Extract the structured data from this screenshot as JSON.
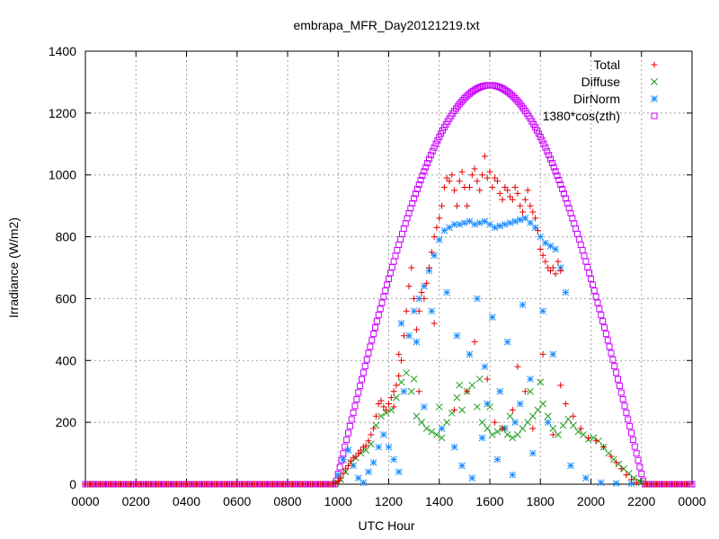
{
  "chart_data": {
    "type": "scatter",
    "title": "embrapa_MFR_Day20121219.txt",
    "xlabel": "UTC Hour",
    "ylabel": "Irradiance (W/m2)",
    "xlim": [
      0,
      24
    ],
    "ylim": [
      0,
      1400
    ],
    "xticks": [
      "0000",
      "0200",
      "0400",
      "0600",
      "0800",
      "1000",
      "1200",
      "1400",
      "1600",
      "1800",
      "2000",
      "2200",
      "0000"
    ],
    "yticks": [
      "0",
      "200",
      "400",
      "600",
      "800",
      "1000",
      "1200",
      "1400"
    ],
    "grid": true,
    "legend_position": "top-right",
    "colors": {
      "total": "#e60000",
      "diffuse": "#1a9c1a",
      "dirnorm": "#1a8cff",
      "cos": "#cc00ff"
    },
    "series": [
      {
        "name": "Total",
        "marker": "plus",
        "points": [
          [
            9.9,
            5
          ],
          [
            10.0,
            10
          ],
          [
            10.1,
            20
          ],
          [
            10.2,
            35
          ],
          [
            10.3,
            50
          ],
          [
            10.4,
            60
          ],
          [
            10.5,
            75
          ],
          [
            10.6,
            85
          ],
          [
            10.7,
            90
          ],
          [
            10.8,
            100
          ],
          [
            10.9,
            110
          ],
          [
            11.0,
            120
          ],
          [
            11.1,
            125
          ],
          [
            11.2,
            140
          ],
          [
            11.3,
            160
          ],
          [
            11.4,
            180
          ],
          [
            11.5,
            220
          ],
          [
            11.6,
            260
          ],
          [
            11.7,
            270
          ],
          [
            11.8,
            250
          ],
          [
            11.9,
            240
          ],
          [
            12.0,
            260
          ],
          [
            12.1,
            280
          ],
          [
            12.2,
            300
          ],
          [
            12.3,
            320
          ],
          [
            12.4,
            350
          ],
          [
            12.5,
            400
          ],
          [
            12.6,
            480
          ],
          [
            12.7,
            560
          ],
          [
            12.8,
            640
          ],
          [
            12.9,
            700
          ],
          [
            13.0,
            600
          ],
          [
            13.1,
            500
          ],
          [
            13.2,
            560
          ],
          [
            13.3,
            620
          ],
          [
            13.4,
            600
          ],
          [
            13.5,
            650
          ],
          [
            13.6,
            700
          ],
          [
            13.7,
            750
          ],
          [
            13.8,
            800
          ],
          [
            13.9,
            830
          ],
          [
            14.0,
            860
          ],
          [
            14.1,
            900
          ],
          [
            14.2,
            960
          ],
          [
            14.3,
            990
          ],
          [
            14.4,
            980
          ],
          [
            14.5,
            1000
          ],
          [
            14.6,
            950
          ],
          [
            14.7,
            900
          ],
          [
            14.8,
            980
          ],
          [
            14.9,
            1010
          ],
          [
            15.0,
            960
          ],
          [
            15.1,
            900
          ],
          [
            15.2,
            960
          ],
          [
            15.3,
            1000
          ],
          [
            15.4,
            1020
          ],
          [
            15.5,
            980
          ],
          [
            15.6,
            950
          ],
          [
            15.7,
            1000
          ],
          [
            15.8,
            1060
          ],
          [
            15.9,
            990
          ],
          [
            16.0,
            1010
          ],
          [
            16.1,
            960
          ],
          [
            16.2,
            990
          ],
          [
            16.3,
            980
          ],
          [
            16.4,
            940
          ],
          [
            16.5,
            920
          ],
          [
            16.6,
            960
          ],
          [
            16.7,
            950
          ],
          [
            16.8,
            930
          ],
          [
            16.9,
            920
          ],
          [
            17.0,
            960
          ],
          [
            17.1,
            940
          ],
          [
            17.2,
            900
          ],
          [
            17.3,
            880
          ],
          [
            17.4,
            920
          ],
          [
            17.5,
            950
          ],
          [
            17.6,
            900
          ],
          [
            17.7,
            880
          ],
          [
            17.8,
            860
          ],
          [
            17.9,
            820
          ],
          [
            18.0,
            760
          ],
          [
            18.1,
            740
          ],
          [
            18.2,
            720
          ],
          [
            18.3,
            700
          ],
          [
            18.4,
            690
          ],
          [
            18.5,
            700
          ],
          [
            18.6,
            680
          ],
          [
            18.7,
            720
          ],
          [
            18.8,
            690
          ],
          [
            12.2,
            250
          ],
          [
            12.4,
            420
          ],
          [
            13.2,
            300
          ],
          [
            13.8,
            520
          ],
          [
            14.6,
            240
          ],
          [
            15.1,
            300
          ],
          [
            15.4,
            460
          ],
          [
            15.9,
            340
          ],
          [
            16.2,
            200
          ],
          [
            16.5,
            180
          ],
          [
            16.9,
            240
          ],
          [
            17.1,
            380
          ],
          [
            17.4,
            300
          ],
          [
            17.7,
            180
          ],
          [
            18.1,
            420
          ],
          [
            18.5,
            160
          ],
          [
            18.8,
            320
          ],
          [
            19.0,
            260
          ],
          [
            19.3,
            220
          ],
          [
            19.6,
            180
          ],
          [
            19.9,
            150
          ],
          [
            20.2,
            140
          ],
          [
            20.5,
            120
          ],
          [
            20.8,
            90
          ],
          [
            21.0,
            70
          ],
          [
            21.2,
            50
          ],
          [
            21.4,
            30
          ],
          [
            21.6,
            15
          ],
          [
            21.8,
            5
          ]
        ]
      },
      {
        "name": "Diffuse",
        "marker": "cross",
        "points": [
          [
            9.9,
            4
          ],
          [
            10.1,
            15
          ],
          [
            10.3,
            40
          ],
          [
            10.5,
            70
          ],
          [
            10.7,
            85
          ],
          [
            10.9,
            100
          ],
          [
            11.1,
            110
          ],
          [
            11.3,
            130
          ],
          [
            11.5,
            190
          ],
          [
            11.7,
            220
          ],
          [
            11.9,
            230
          ],
          [
            12.1,
            240
          ],
          [
            12.3,
            280
          ],
          [
            12.5,
            330
          ],
          [
            12.7,
            360
          ],
          [
            12.9,
            300
          ],
          [
            13.1,
            220
          ],
          [
            13.3,
            200
          ],
          [
            13.5,
            180
          ],
          [
            13.7,
            170
          ],
          [
            13.9,
            160
          ],
          [
            14.1,
            150
          ],
          [
            14.3,
            200
          ],
          [
            14.5,
            230
          ],
          [
            14.7,
            280
          ],
          [
            14.9,
            240
          ],
          [
            15.1,
            300
          ],
          [
            15.3,
            320
          ],
          [
            15.5,
            250
          ],
          [
            15.7,
            200
          ],
          [
            15.9,
            180
          ],
          [
            16.1,
            160
          ],
          [
            16.3,
            170
          ],
          [
            16.5,
            180
          ],
          [
            16.7,
            160
          ],
          [
            16.9,
            150
          ],
          [
            17.1,
            160
          ],
          [
            17.3,
            180
          ],
          [
            17.5,
            200
          ],
          [
            17.7,
            220
          ],
          [
            17.9,
            240
          ],
          [
            18.1,
            260
          ],
          [
            18.3,
            220
          ],
          [
            18.5,
            180
          ],
          [
            18.7,
            160
          ],
          [
            18.9,
            190
          ],
          [
            19.1,
            210
          ],
          [
            19.3,
            190
          ],
          [
            19.5,
            170
          ],
          [
            19.7,
            160
          ],
          [
            19.9,
            145
          ],
          [
            20.1,
            150
          ],
          [
            20.3,
            140
          ],
          [
            20.5,
            120
          ],
          [
            20.7,
            100
          ],
          [
            20.9,
            80
          ],
          [
            21.1,
            65
          ],
          [
            21.3,
            50
          ],
          [
            21.5,
            35
          ],
          [
            21.7,
            20
          ],
          [
            21.9,
            10
          ],
          [
            22.0,
            5
          ],
          [
            13.0,
            340
          ],
          [
            14.8,
            320
          ],
          [
            15.6,
            340
          ],
          [
            16.8,
            220
          ],
          [
            17.6,
            300
          ],
          [
            18.0,
            330
          ],
          [
            14.0,
            250
          ],
          [
            16.0,
            250
          ]
        ]
      },
      {
        "name": "DirNorm",
        "marker": "star",
        "points": [
          [
            10.0,
            30
          ],
          [
            10.2,
            80
          ],
          [
            10.4,
            110
          ],
          [
            10.6,
            60
          ],
          [
            10.8,
            20
          ],
          [
            11.0,
            5
          ],
          [
            11.2,
            40
          ],
          [
            11.4,
            70
          ],
          [
            11.6,
            120
          ],
          [
            11.8,
            160
          ],
          [
            12.0,
            120
          ],
          [
            12.2,
            80
          ],
          [
            12.4,
            40
          ],
          [
            12.6,
            300
          ],
          [
            12.8,
            480
          ],
          [
            13.0,
            560
          ],
          [
            13.2,
            600
          ],
          [
            13.4,
            640
          ],
          [
            13.6,
            690
          ],
          [
            13.8,
            740
          ],
          [
            14.0,
            790
          ],
          [
            14.2,
            820
          ],
          [
            14.4,
            830
          ],
          [
            14.6,
            840
          ],
          [
            14.8,
            840
          ],
          [
            15.0,
            845
          ],
          [
            15.2,
            850
          ],
          [
            15.4,
            840
          ],
          [
            15.6,
            845
          ],
          [
            15.8,
            850
          ],
          [
            16.0,
            840
          ],
          [
            16.2,
            830
          ],
          [
            16.4,
            835
          ],
          [
            16.6,
            840
          ],
          [
            16.8,
            845
          ],
          [
            17.0,
            850
          ],
          [
            17.2,
            855
          ],
          [
            17.4,
            860
          ],
          [
            17.6,
            845
          ],
          [
            17.8,
            830
          ],
          [
            18.0,
            800
          ],
          [
            18.2,
            780
          ],
          [
            18.4,
            770
          ],
          [
            18.6,
            760
          ],
          [
            18.8,
            700
          ],
          [
            19.0,
            620
          ],
          [
            12.5,
            520
          ],
          [
            13.1,
            460
          ],
          [
            13.7,
            560
          ],
          [
            14.3,
            620
          ],
          [
            14.7,
            480
          ],
          [
            15.2,
            420
          ],
          [
            15.5,
            600
          ],
          [
            15.8,
            380
          ],
          [
            16.1,
            540
          ],
          [
            16.4,
            300
          ],
          [
            16.7,
            460
          ],
          [
            17.0,
            200
          ],
          [
            17.3,
            580
          ],
          [
            17.6,
            340
          ],
          [
            18.1,
            560
          ],
          [
            18.5,
            420
          ],
          [
            14.9,
            60
          ],
          [
            15.3,
            20
          ],
          [
            15.7,
            150
          ],
          [
            16.3,
            80
          ],
          [
            16.9,
            30
          ],
          [
            17.7,
            100
          ],
          [
            13.4,
            250
          ],
          [
            14.1,
            180
          ],
          [
            14.6,
            120
          ],
          [
            15.9,
            260
          ],
          [
            16.6,
            180
          ],
          [
            17.2,
            260
          ],
          [
            18.3,
            200
          ],
          [
            19.2,
            60
          ],
          [
            19.8,
            20
          ],
          [
            20.4,
            5
          ],
          [
            21.0,
            3
          ],
          [
            21.6,
            2
          ]
        ]
      },
      {
        "name": "1380*cos(zth)",
        "marker": "square",
        "curve": {
          "sunrise": 9.9,
          "noon": 16.0,
          "sunset": 22.1,
          "peak": 1290,
          "step_minutes": 4
        }
      }
    ]
  }
}
